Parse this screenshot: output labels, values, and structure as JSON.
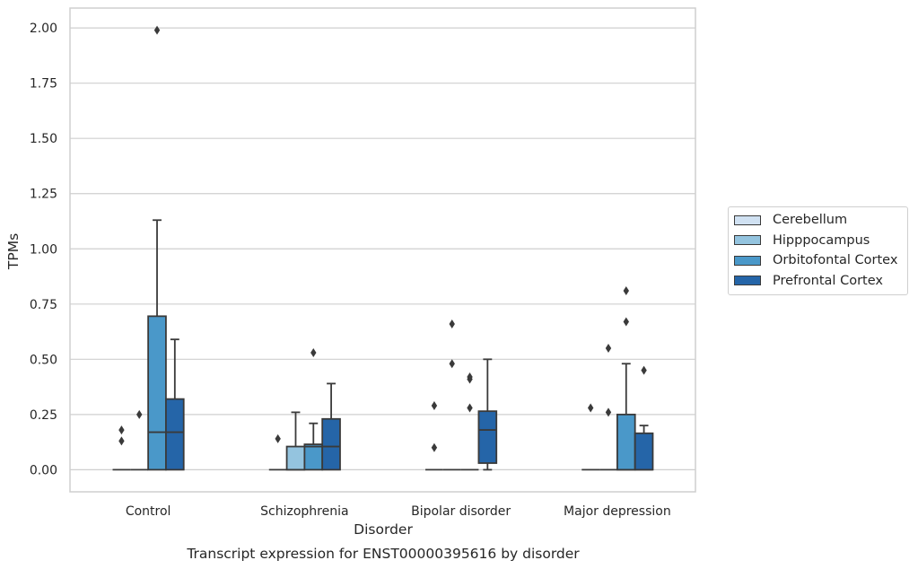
{
  "chart_data": {
    "type": "box",
    "title": "",
    "caption": "Transcript expression for ENST00000395616 by disorder",
    "xlabel": "Disorder",
    "ylabel": "TPMs",
    "ylim": [
      -0.1,
      2.09
    ],
    "yticks": [
      "0.00",
      "0.25",
      "0.50",
      "0.75",
      "1.00",
      "1.25",
      "1.50",
      "1.75",
      "2.00"
    ],
    "ytick_values": [
      0,
      0.25,
      0.5,
      0.75,
      1.0,
      1.25,
      1.5,
      1.75,
      2.0
    ],
    "grid": true,
    "legend_position": "right",
    "categories": [
      "Control",
      "Schizophrenia",
      "Bipolar disorder",
      "Major depression"
    ],
    "series": [
      {
        "name": "Cerebellum",
        "color": "#d0e1f2",
        "boxes": [
          {
            "q1": 0,
            "median": 0,
            "q3": 0,
            "whisker_low": 0,
            "whisker_high": 0,
            "outliers": [
              0.13,
              0.18
            ]
          },
          {
            "q1": 0,
            "median": 0,
            "q3": 0,
            "whisker_low": 0,
            "whisker_high": 0,
            "outliers": [
              0.14
            ]
          },
          {
            "q1": 0,
            "median": 0,
            "q3": 0,
            "whisker_low": 0,
            "whisker_high": 0,
            "outliers": [
              0.1,
              0.29
            ]
          },
          {
            "q1": 0,
            "median": 0,
            "q3": 0,
            "whisker_low": 0,
            "whisker_high": 0,
            "outliers": [
              0.28
            ]
          }
        ]
      },
      {
        "name": "Hipppocampus",
        "color": "#94c4df",
        "boxes": [
          {
            "q1": 0,
            "median": 0,
            "q3": 0,
            "whisker_low": 0,
            "whisker_high": 0,
            "outliers": [
              0.25
            ]
          },
          {
            "q1": 0,
            "median": 0,
            "q3": 0.105,
            "whisker_low": 0,
            "whisker_high": 0.26,
            "outliers": []
          },
          {
            "q1": 0,
            "median": 0,
            "q3": 0,
            "whisker_low": 0,
            "whisker_high": 0,
            "outliers": [
              0.48,
              0.66
            ]
          },
          {
            "q1": 0,
            "median": 0,
            "q3": 0,
            "whisker_low": 0,
            "whisker_high": 0,
            "outliers": [
              0.26,
              0.55
            ]
          }
        ]
      },
      {
        "name": "Orbitofontal Cortex",
        "color": "#4a98c9",
        "boxes": [
          {
            "q1": 0,
            "median": 0.17,
            "q3": 0.695,
            "whisker_low": 0,
            "whisker_high": 1.13,
            "outliers": [
              1.99
            ]
          },
          {
            "q1": 0,
            "median": 0.105,
            "q3": 0.115,
            "whisker_low": 0,
            "whisker_high": 0.21,
            "outliers": [
              0.53
            ]
          },
          {
            "q1": 0,
            "median": 0,
            "q3": 0,
            "whisker_low": 0,
            "whisker_high": 0,
            "outliers": [
              0.28,
              0.41,
              0.42
            ]
          },
          {
            "q1": 0,
            "median": 0,
            "q3": 0.25,
            "whisker_low": 0,
            "whisker_high": 0.48,
            "outliers": [
              0.67,
              0.81
            ]
          }
        ]
      },
      {
        "name": "Prefrontal Cortex",
        "color": "#2565a8",
        "boxes": [
          {
            "q1": 0,
            "median": 0.17,
            "q3": 0.32,
            "whisker_low": 0,
            "whisker_high": 0.59,
            "outliers": []
          },
          {
            "q1": 0,
            "median": 0.105,
            "q3": 0.23,
            "whisker_low": 0,
            "whisker_high": 0.39,
            "outliers": []
          },
          {
            "q1": 0.03,
            "median": 0.18,
            "q3": 0.265,
            "whisker_low": 0,
            "whisker_high": 0.5,
            "outliers": []
          },
          {
            "q1": 0,
            "median": 0,
            "q3": 0.165,
            "whisker_low": 0,
            "whisker_high": 0.2,
            "outliers": [
              0.45
            ]
          }
        ]
      }
    ]
  }
}
